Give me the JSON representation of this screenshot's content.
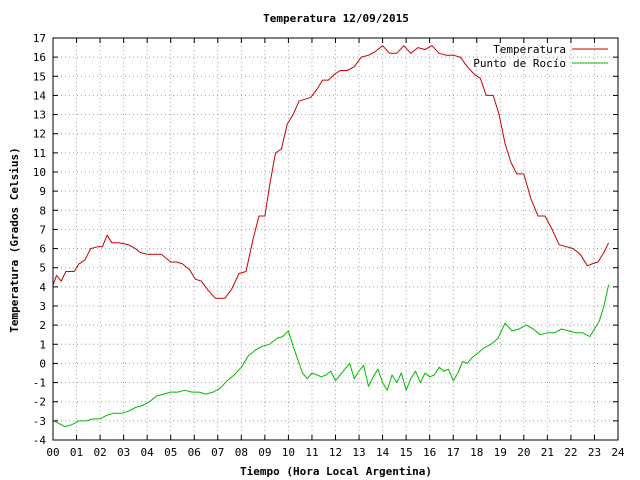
{
  "chart_data": {
    "type": "line",
    "title": "Temperatura 12/09/2015",
    "xlabel": "Tiempo (Hora Local Argentina)",
    "ylabel": "Temperatura (Grados Celsius)",
    "xlim": [
      0,
      24
    ],
    "ylim": [
      -4,
      17
    ],
    "xticks": [
      0,
      1,
      2,
      3,
      4,
      5,
      6,
      7,
      8,
      9,
      10,
      11,
      12,
      13,
      14,
      15,
      16,
      17,
      18,
      19,
      20,
      21,
      22,
      23,
      24
    ],
    "xtick_labels": [
      "00",
      "01",
      "02",
      "03",
      "04",
      "05",
      "06",
      "07",
      "08",
      "09",
      "10",
      "11",
      "12",
      "13",
      "14",
      "15",
      "16",
      "17",
      "18",
      "19",
      "20",
      "21",
      "22",
      "23",
      "24"
    ],
    "yticks": [
      -4,
      -3,
      -2,
      -1,
      0,
      1,
      2,
      3,
      4,
      5,
      6,
      7,
      8,
      9,
      10,
      11,
      12,
      13,
      14,
      15,
      16,
      17
    ],
    "grid": true,
    "legend_position": "top-right",
    "series": [
      {
        "name": "Temperatura",
        "color": "#cc0000",
        "x": [
          0.0,
          0.15,
          0.35,
          0.55,
          0.9,
          1.1,
          1.35,
          1.6,
          1.9,
          2.1,
          2.3,
          2.5,
          2.8,
          3.2,
          3.5,
          3.7,
          4.0,
          4.3,
          4.6,
          5.0,
          5.25,
          5.5,
          5.8,
          6.05,
          6.3,
          6.6,
          6.9,
          7.1,
          7.3,
          7.6,
          7.9,
          8.2,
          8.5,
          8.75,
          9.0,
          9.2,
          9.45,
          9.7,
          9.95,
          10.2,
          10.45,
          10.7,
          10.95,
          11.2,
          11.45,
          11.7,
          11.95,
          12.2,
          12.5,
          12.8,
          13.1,
          13.4,
          13.7,
          14.0,
          14.3,
          14.6,
          14.9,
          15.2,
          15.5,
          15.8,
          16.1,
          16.4,
          16.7,
          17.0,
          17.3,
          17.6,
          17.9,
          18.15,
          18.4,
          18.7,
          18.95,
          19.2,
          19.45,
          19.7,
          20.0,
          20.3,
          20.6,
          20.9,
          21.2,
          21.5,
          21.8,
          22.1,
          22.4,
          22.7,
          22.9,
          23.15,
          23.4,
          23.6
        ],
        "y": [
          4.1,
          4.6,
          4.3,
          4.8,
          4.8,
          5.2,
          5.4,
          6.0,
          6.1,
          6.1,
          6.7,
          6.3,
          6.3,
          6.2,
          6.0,
          5.8,
          5.7,
          5.7,
          5.7,
          5.3,
          5.3,
          5.2,
          4.9,
          4.4,
          4.3,
          3.8,
          3.4,
          3.4,
          3.4,
          3.9,
          4.7,
          4.8,
          6.5,
          7.7,
          7.7,
          9.3,
          11.0,
          11.2,
          12.5,
          13.0,
          13.7,
          13.8,
          13.9,
          14.3,
          14.8,
          14.8,
          15.1,
          15.3,
          15.3,
          15.5,
          16.0,
          16.1,
          16.3,
          16.6,
          16.2,
          16.2,
          16.6,
          16.2,
          16.5,
          16.4,
          16.6,
          16.2,
          16.1,
          16.1,
          16.0,
          15.5,
          15.1,
          14.9,
          14.0,
          14.0,
          13.0,
          11.5,
          10.5,
          9.9,
          9.9,
          8.6,
          7.7,
          7.7,
          7.0,
          6.2,
          6.1,
          6.0,
          5.7,
          5.1,
          5.2,
          5.3,
          5.8,
          6.3
        ]
      },
      {
        "name": "Punto de Rocío",
        "color": "#00bb00",
        "x": [
          0.0,
          0.2,
          0.5,
          0.8,
          1.1,
          1.4,
          1.7,
          2.0,
          2.3,
          2.6,
          2.9,
          3.2,
          3.5,
          3.8,
          4.1,
          4.4,
          4.7,
          5.0,
          5.3,
          5.6,
          5.9,
          6.2,
          6.5,
          6.8,
          7.1,
          7.4,
          7.7,
          8.0,
          8.3,
          8.6,
          8.9,
          9.2,
          9.5,
          9.75,
          10.0,
          10.2,
          10.4,
          10.6,
          10.8,
          11.0,
          11.2,
          11.4,
          11.6,
          11.8,
          12.0,
          12.2,
          12.4,
          12.6,
          12.8,
          13.0,
          13.2,
          13.4,
          13.6,
          13.8,
          14.0,
          14.2,
          14.4,
          14.6,
          14.8,
          15.0,
          15.2,
          15.4,
          15.6,
          15.8,
          16.0,
          16.2,
          16.4,
          16.6,
          16.8,
          17.0,
          17.2,
          17.4,
          17.6,
          17.8,
          18.0,
          18.3,
          18.6,
          18.9,
          19.2,
          19.5,
          19.8,
          20.1,
          20.4,
          20.7,
          21.0,
          21.3,
          21.6,
          21.9,
          22.2,
          22.5,
          22.8,
          23.0,
          23.2,
          23.4,
          23.6
        ],
        "y": [
          -3.0,
          -3.1,
          -3.3,
          -3.2,
          -3.0,
          -3.0,
          -2.9,
          -2.9,
          -2.7,
          -2.6,
          -2.6,
          -2.5,
          -2.3,
          -2.2,
          -2.0,
          -1.7,
          -1.6,
          -1.5,
          -1.5,
          -1.4,
          -1.5,
          -1.5,
          -1.6,
          -1.5,
          -1.3,
          -0.9,
          -0.6,
          -0.2,
          0.4,
          0.7,
          0.9,
          1.0,
          1.3,
          1.4,
          1.7,
          0.9,
          0.2,
          -0.5,
          -0.8,
          -0.5,
          -0.6,
          -0.7,
          -0.6,
          -0.4,
          -0.9,
          -0.6,
          -0.3,
          0.0,
          -0.8,
          -0.4,
          -0.1,
          -1.2,
          -0.7,
          -0.3,
          -1.0,
          -1.4,
          -0.6,
          -1.0,
          -0.5,
          -1.4,
          -0.8,
          -0.4,
          -1.0,
          -0.5,
          -0.7,
          -0.6,
          -0.2,
          -0.4,
          -0.3,
          -0.9,
          -0.5,
          0.1,
          0.0,
          0.3,
          0.5,
          0.8,
          1.0,
          1.3,
          2.1,
          1.7,
          1.8,
          2.0,
          1.8,
          1.5,
          1.6,
          1.6,
          1.8,
          1.7,
          1.6,
          1.6,
          1.4,
          1.8,
          2.2,
          3.0,
          4.1
        ]
      }
    ]
  }
}
